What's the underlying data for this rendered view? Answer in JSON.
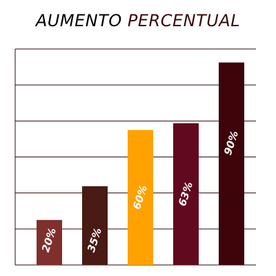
{
  "chart_data": {
    "type": "bar",
    "title_part1": "AUMENTO",
    "title_part2": "PERCENTUAL",
    "categories": [
      "",
      "",
      "",
      "",
      ""
    ],
    "values": [
      20,
      35,
      60,
      63,
      90
    ],
    "labels": [
      "20%",
      "35%",
      "60%",
      "63%",
      "90%"
    ],
    "colors": [
      "#7f2f2c",
      "#4a1a14",
      "#ffa200",
      "#610a1f",
      "#3d0509"
    ],
    "ylim": [
      0,
      96
    ],
    "gridlines": 6,
    "grid": true,
    "legend": "none"
  },
  "colors": {
    "title_primary": "#000000",
    "title_accent": "#3a0a0c",
    "grid": "#2a0a0a"
  }
}
